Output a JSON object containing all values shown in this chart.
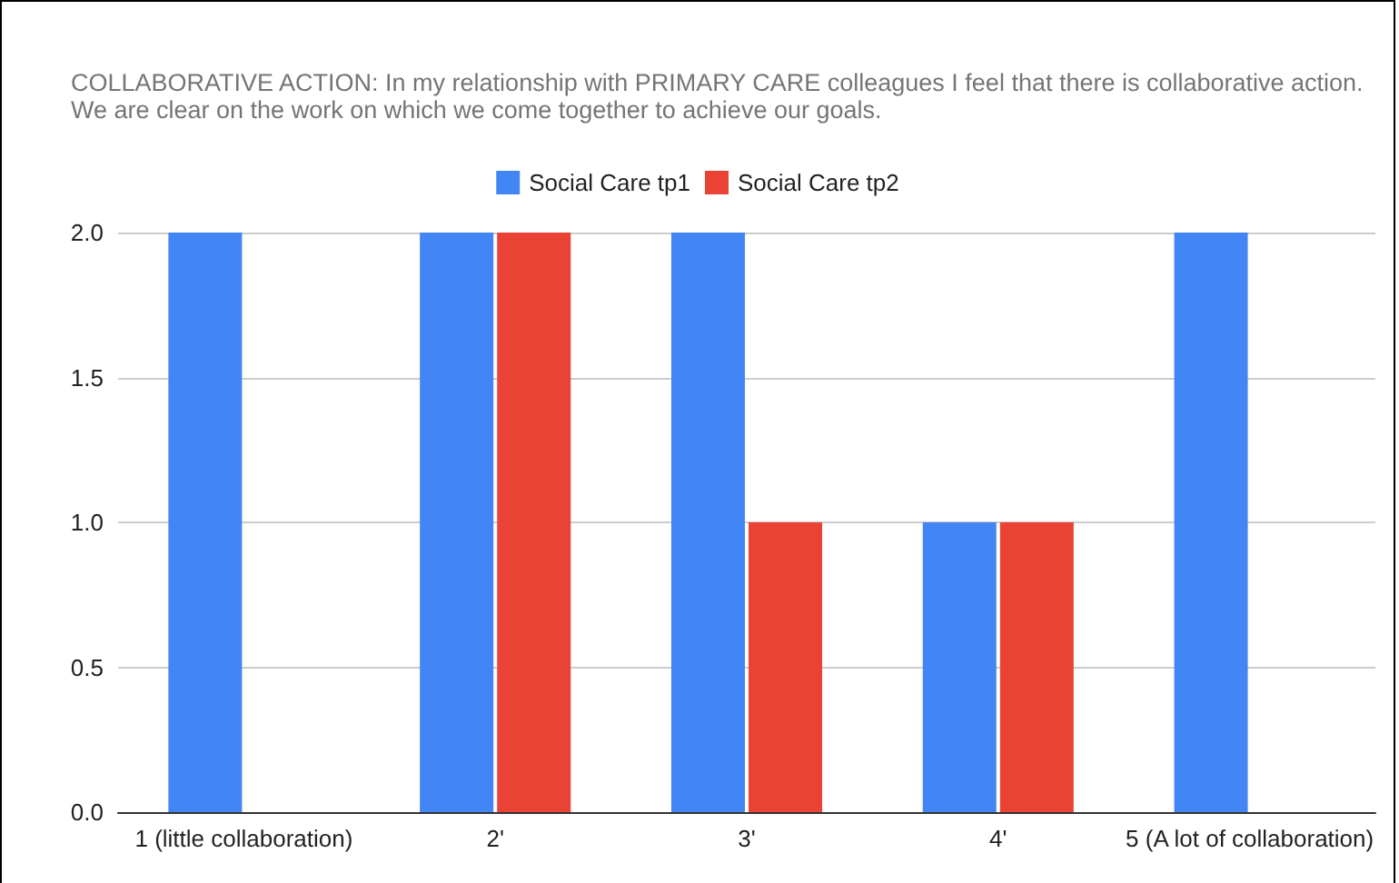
{
  "chart_data": {
    "type": "bar",
    "title": "COLLABORATIVE ACTION: In my relationship with PRIMARY CARE colleagues I feel that there is collaborative action. We are clear on the work on which we come together to achieve our goals.",
    "categories": [
      "1 (little collaboration)",
      "2'",
      "3'",
      "4'",
      "5 (A lot of collaboration)"
    ],
    "series": [
      {
        "name": "Social Care tp1",
        "color": "#4285f4",
        "values": [
          2,
          2,
          2,
          1,
          2
        ]
      },
      {
        "name": "Social Care tp2",
        "color": "#ea4335",
        "values": [
          null,
          2,
          1,
          1,
          null
        ]
      }
    ],
    "ylim": [
      0,
      2
    ],
    "yticks": [
      {
        "value": 0,
        "label": "0.0"
      },
      {
        "value": 0.5,
        "label": "0.5"
      },
      {
        "value": 1,
        "label": "1.0"
      },
      {
        "value": 1.5,
        "label": "1.5"
      },
      {
        "value": 2,
        "label": "2.0"
      }
    ],
    "grid": "y",
    "legend": "top"
  }
}
